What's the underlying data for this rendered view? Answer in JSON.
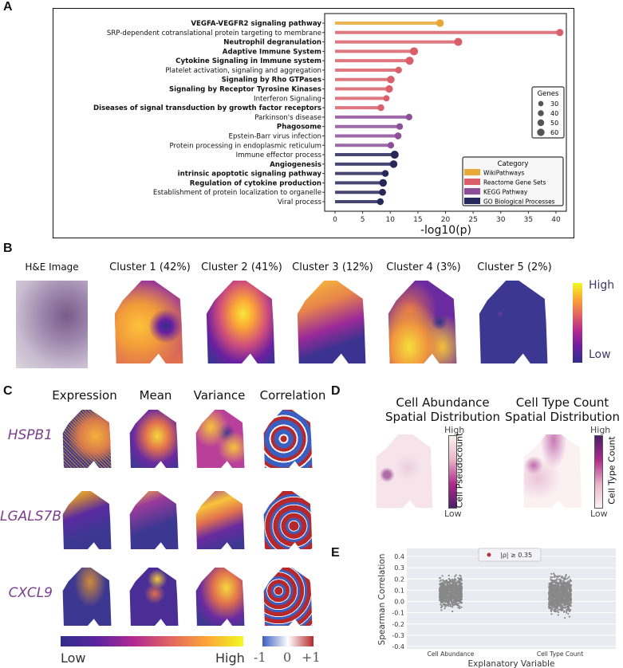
{
  "panels": {
    "a": "A",
    "b": "B",
    "c": "C",
    "d": "D",
    "e": "E"
  },
  "chart_data": [
    {
      "type": "lollipop",
      "xlabel": "-log10(p)",
      "xlim": [
        0,
        42
      ],
      "xticks": [
        "0",
        "5",
        "10",
        "15",
        "20",
        "25",
        "30",
        "35",
        "40"
      ],
      "categories": [
        {
          "label": "VEGFA-VEGFR2 signaling pathway",
          "bold": true,
          "category": 0,
          "value": 19.0,
          "genes": 50
        },
        {
          "label": "SRP-dependent cotranslational protein targeting to membrane",
          "bold": false,
          "category": 1,
          "value": 40.7,
          "genes": 45
        },
        {
          "label": "Neutrophil degranulation",
          "bold": true,
          "category": 1,
          "value": 22.3,
          "genes": 55
        },
        {
          "label": "Adaptive Immune System",
          "bold": true,
          "category": 1,
          "value": 14.3,
          "genes": 55
        },
        {
          "label": "Cytokine Signaling in Immune system",
          "bold": true,
          "category": 1,
          "value": 13.5,
          "genes": 55
        },
        {
          "label": "Platelet activation, signaling and aggregation",
          "bold": false,
          "category": 1,
          "value": 11.5,
          "genes": 40
        },
        {
          "label": "Signaling by Rho GTPases",
          "bold": true,
          "category": 1,
          "value": 10.1,
          "genes": 50
        },
        {
          "label": "Signaling by Receptor Tyrosine Kinases",
          "bold": true,
          "category": 1,
          "value": 9.8,
          "genes": 48
        },
        {
          "label": "Interferon Signaling",
          "bold": false,
          "category": 1,
          "value": 9.3,
          "genes": 35
        },
        {
          "label": "Diseases of signal transduction by growth factor receptors",
          "bold": true,
          "category": 1,
          "value": 8.3,
          "genes": 40
        },
        {
          "label": "Parkinson's disease",
          "bold": false,
          "category": 2,
          "value": 13.4,
          "genes": 38
        },
        {
          "label": "Phagosome",
          "bold": true,
          "category": 2,
          "value": 11.7,
          "genes": 38
        },
        {
          "label": "Epstein-Barr virus infection",
          "bold": false,
          "category": 2,
          "value": 11.4,
          "genes": 42
        },
        {
          "label": "Protein processing in endoplasmic reticulum",
          "bold": false,
          "category": 2,
          "value": 10.1,
          "genes": 38
        },
        {
          "label": "Immune effector process",
          "bold": false,
          "category": 3,
          "value": 10.8,
          "genes": 55
        },
        {
          "label": "Angiogenesis",
          "bold": true,
          "category": 3,
          "value": 10.6,
          "genes": 50
        },
        {
          "label": "intrinsic apoptotic signaling pathway",
          "bold": true,
          "category": 3,
          "value": 9.1,
          "genes": 40
        },
        {
          "label": "Regulation of cytokine production",
          "bold": true,
          "category": 3,
          "value": 8.7,
          "genes": 50
        },
        {
          "label": "Establishment of protein localization to organelle",
          "bold": false,
          "category": 3,
          "value": 8.6,
          "genes": 42
        },
        {
          "label": "Viral process",
          "bold": false,
          "category": 3,
          "value": 8.2,
          "genes": 40
        }
      ],
      "size_legend": {
        "title": "Genes",
        "entries": [
          {
            "label": "30",
            "genes": 30
          },
          {
            "label": "40",
            "genes": 40
          },
          {
            "label": "50",
            "genes": 50
          },
          {
            "label": "60",
            "genes": 60
          }
        ]
      },
      "color_legend": {
        "title": "Category",
        "entries": [
          {
            "label": "WikiPathways",
            "color": "#e8a838"
          },
          {
            "label": "Reactome Gene Sets",
            "color": "#d9606a"
          },
          {
            "label": "KEGG Pathway",
            "color": "#8e4f9a"
          },
          {
            "label": "GO Biological Processes",
            "color": "#27285a"
          }
        ]
      }
    },
    {
      "type": "scatter",
      "xlabel": "Explanatory Variable",
      "ylabel": "Spearman Correlation",
      "categories": [
        "Cell Abundance",
        "Cell Type Count"
      ],
      "ylim": [
        -0.45,
        0.45
      ],
      "yticks": [
        "0.4",
        "0.3",
        "0.2",
        "0.1",
        "0.0",
        "-0.1",
        "-0.2",
        "-0.3",
        "-0.4"
      ],
      "legend": "|ρ| ≥ 0.35",
      "threshold": 0.35,
      "highlight_color": "#b5343c",
      "point_color": "#888888"
    }
  ],
  "panel_b": {
    "he_title": "H&E Image",
    "clusters": [
      "Cluster 1 (42%)",
      "Cluster 2 (41%)",
      "Cluster 3 (12%)",
      "Cluster 4 (3%)",
      "Cluster 5 (2%)"
    ],
    "colorbar_high": "High",
    "colorbar_low": "Low"
  },
  "panel_c": {
    "columns": [
      "Expression",
      "Mean",
      "Variance",
      "Correlation"
    ],
    "genes": [
      "HSPB1",
      "LGALS7B",
      "CXCL9"
    ],
    "cb_low": "Low",
    "cb_high": "High",
    "corr_ticks": [
      "-1",
      "0",
      "+1"
    ]
  },
  "panel_d": {
    "left_title_1": "Cell Abundance",
    "left_title_2": "Spatial Distribution",
    "right_title_1": "Cell Type Count",
    "right_title_2": "Spatial Distribution",
    "left_cb_label": "Cell Pseudocount",
    "right_cb_label": "Cell Type Count",
    "high": "High",
    "low": "Low"
  }
}
